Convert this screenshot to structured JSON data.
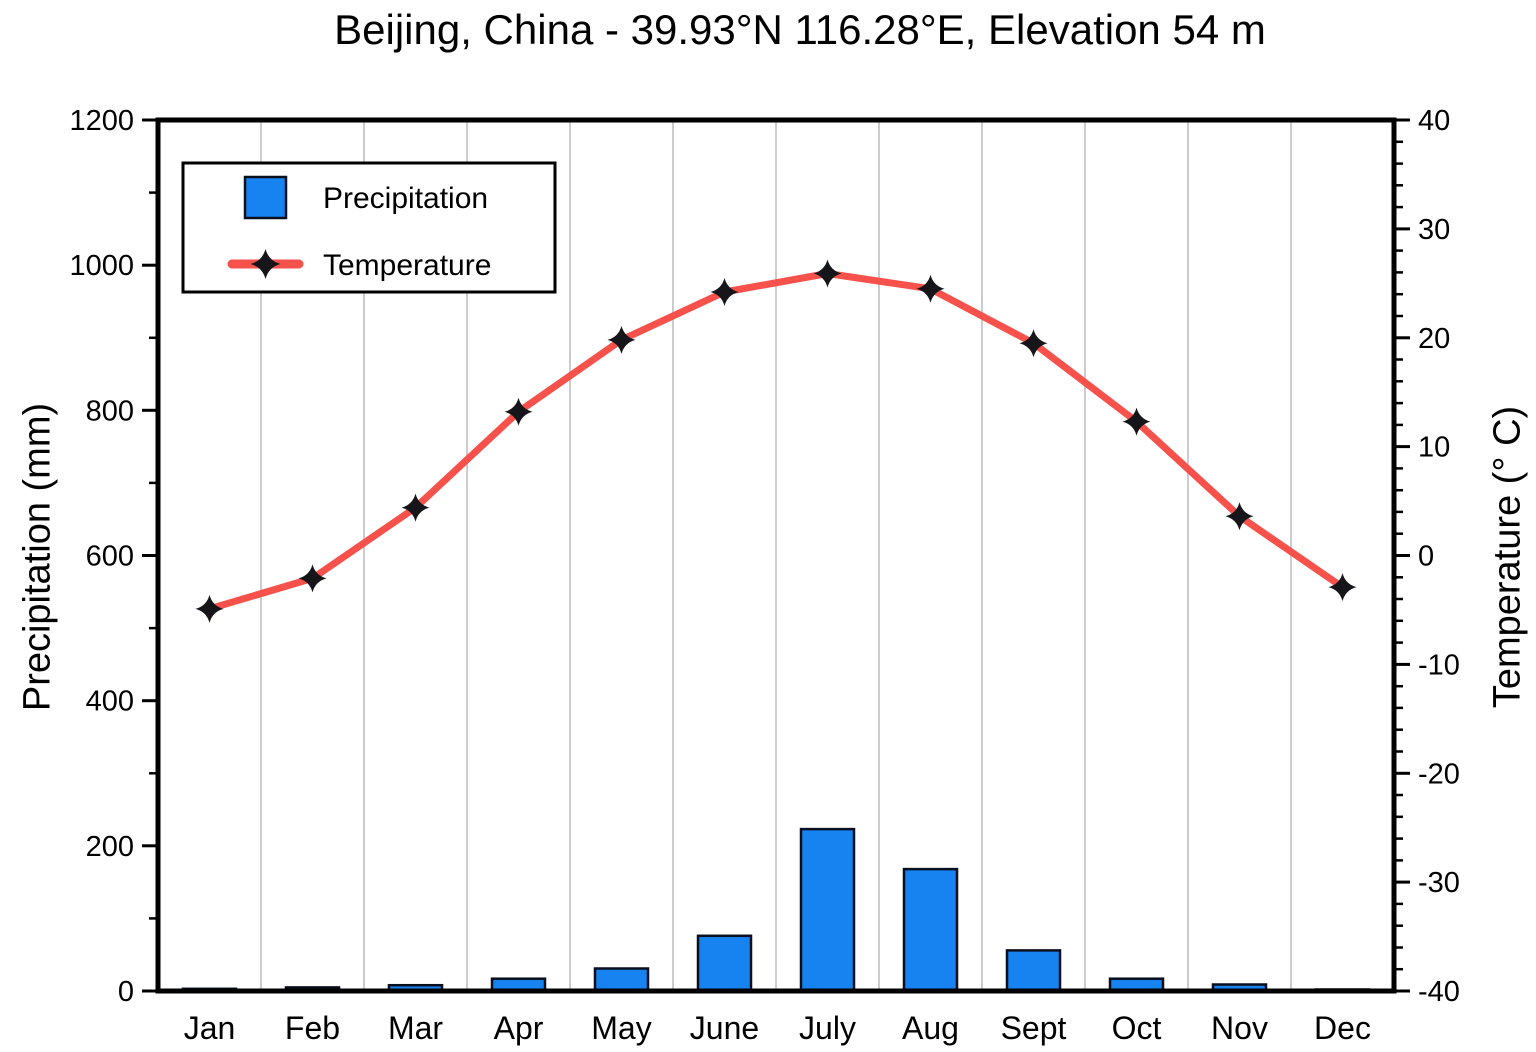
{
  "chart_data": {
    "type": "combo",
    "title": "Beijing, China - 39.93°N 116.28°E, Elevation 54 m",
    "categories": [
      "Jan",
      "Feb",
      "Mar",
      "Apr",
      "May",
      "June",
      "July",
      "Aug",
      "Sept",
      "Oct",
      "Nov",
      "Dec"
    ],
    "series": [
      {
        "name": "Precipitation",
        "type": "bar",
        "axis": "left",
        "unit": "mm",
        "color": "#1783F1",
        "outline_color": "#0A0F1E",
        "values": [
          3,
          5,
          8,
          17,
          31,
          76,
          223,
          168,
          56,
          17,
          9,
          2
        ]
      },
      {
        "name": "Temperature",
        "type": "line",
        "axis": "right",
        "unit": "°C",
        "color": "#F7514C",
        "marker": "four-pointed-star",
        "marker_color": "#16161A",
        "values": [
          -4.9,
          -2.1,
          4.4,
          13.2,
          19.8,
          24.2,
          25.9,
          24.5,
          19.5,
          12.3,
          3.6,
          -2.9
        ]
      }
    ],
    "left_axis": {
      "label": "Precipitation (mm)",
      "min": 0,
      "max": 1200,
      "major_tick_step": 200,
      "minor_tick_step": 100,
      "tick_labels": [
        "0",
        "200",
        "400",
        "600",
        "800",
        "1000",
        "1200"
      ]
    },
    "right_axis": {
      "label": "Temperature (° C)",
      "min": -40,
      "max": 40,
      "major_tick_step": 10,
      "minor_tick_step": 2,
      "tick_labels": [
        "-40",
        "-30",
        "-20",
        "-10",
        "0",
        "10",
        "20",
        "30",
        "40"
      ]
    },
    "grid": {
      "vertical_between_categories": true,
      "color": "#CCCCCC"
    },
    "legend": {
      "position": "upper-left",
      "entries": [
        "Precipitation",
        "Temperature"
      ]
    },
    "frame_color": "#000000",
    "background": "#FFFFFF"
  }
}
